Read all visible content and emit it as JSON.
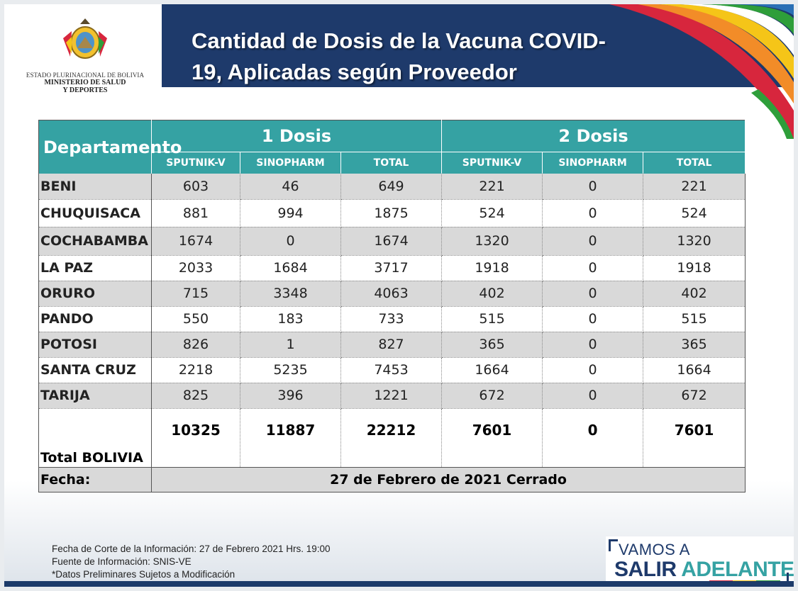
{
  "logo": {
    "line1": "ESTADO PLURINACIONAL DE BOLIVIA",
    "line2": "MINISTERIO DE SALUD",
    "line3": "Y DEPORTES"
  },
  "title": {
    "line1": "Cantidad de Dosis de la Vacuna COVID-",
    "line2": "19, Aplicadas según Proveedor"
  },
  "table": {
    "dept_header": "Departamento",
    "group1": "1 Dosis",
    "group2": "2 Dosis",
    "sub_headers": [
      "SPUTNIK-V",
      "SINOPHARM",
      "TOTAL",
      "SPUTNIK-V",
      "SINOPHARM",
      "TOTAL"
    ],
    "rows": [
      {
        "dep": "BENI",
        "v": [
          "603",
          "46",
          "649",
          "221",
          "0",
          "221"
        ]
      },
      {
        "dep": "CHUQUISACA",
        "v": [
          "881",
          "994",
          "1875",
          "524",
          "0",
          "524"
        ]
      },
      {
        "dep": "COCHABAMBA",
        "v": [
          "1674",
          "0",
          "1674",
          "1320",
          "0",
          "1320"
        ]
      },
      {
        "dep": "LA PAZ",
        "v": [
          "2033",
          "1684",
          "3717",
          "1918",
          "0",
          "1918"
        ]
      },
      {
        "dep": "ORURO",
        "v": [
          "715",
          "3348",
          "4063",
          "402",
          "0",
          "402"
        ]
      },
      {
        "dep": "PANDO",
        "v": [
          "550",
          "183",
          "733",
          "515",
          "0",
          "515"
        ]
      },
      {
        "dep": "POTOSI",
        "v": [
          "826",
          "1",
          "827",
          "365",
          "0",
          "365"
        ]
      },
      {
        "dep": "SANTA CRUZ",
        "v": [
          "2218",
          "5235",
          "7453",
          "1664",
          "0",
          "1664"
        ]
      },
      {
        "dep": "TARIJA",
        "v": [
          "825",
          "396",
          "1221",
          "672",
          "0",
          "672"
        ]
      }
    ],
    "total": {
      "dep": "Total BOLIVIA",
      "v": [
        "10325",
        "11887",
        "22212",
        "7601",
        "0",
        "7601"
      ]
    },
    "fecha_label": "Fecha:",
    "fecha_value": "27 de Febrero de 2021 Cerrado"
  },
  "notes": [
    "Fecha de Corte de la Información: 27 de Febrero 2021 Hrs. 19:00",
    "Fuente de Información: SNIS-VE",
    "*Datos Preliminares Sujetos a Modificación"
  ],
  "brand": {
    "line1": "VAMOS A",
    "line2a": "SALIR ",
    "line2b": "ADELANTE"
  },
  "colors": {
    "header_blue": "#1e3a6b",
    "table_teal": "#35a2a3",
    "row_gray": "#d9d9d9"
  }
}
